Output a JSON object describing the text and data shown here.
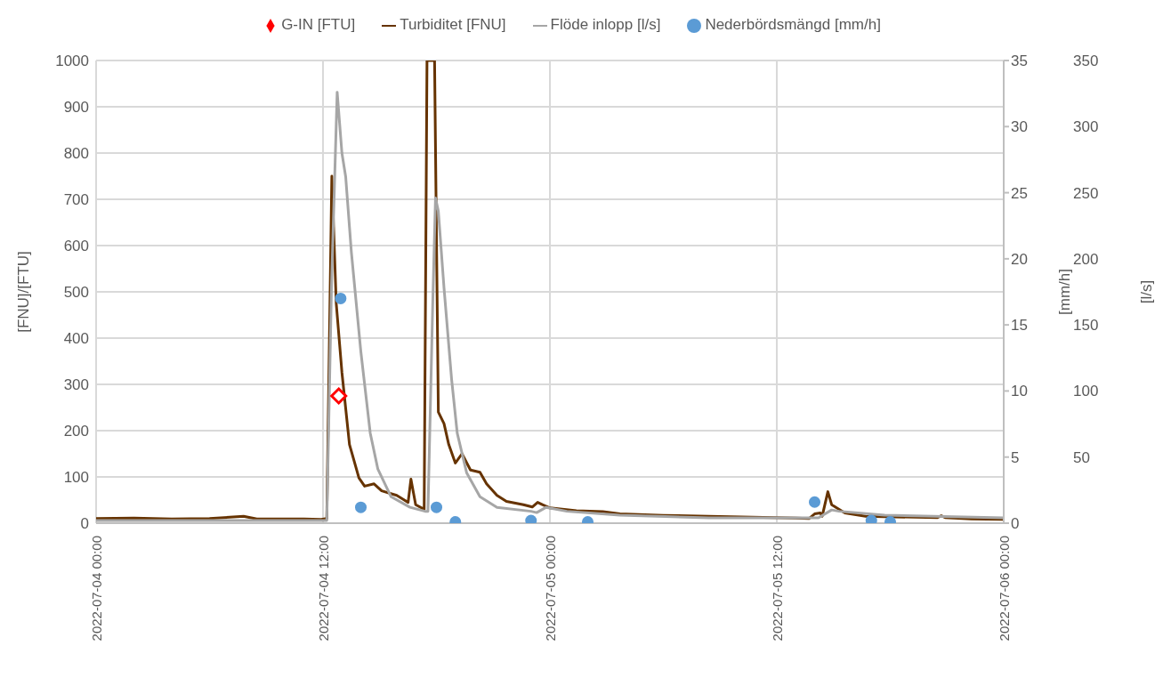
{
  "chart_data": {
    "type": "line",
    "ylabel": "[FNU]/[FTU]",
    "y2label": "[mm/h]",
    "y3label": "[l/s]",
    "xlim": [
      "2022-07-04T00:00",
      "2022-07-06T00:00"
    ],
    "xticks": [
      {
        "value": "2022-07-04T00:00",
        "label": "2022-07-04 00:00"
      },
      {
        "value": "2022-07-04T12:00",
        "label": "2022-07-04 12:00"
      },
      {
        "value": "2022-07-05T00:00",
        "label": "2022-07-05 00:00"
      },
      {
        "value": "2022-07-05T12:00",
        "label": "2022-07-05 12:00"
      },
      {
        "value": "2022-07-06T00:00",
        "label": "2022-07-06 00:00"
      }
    ],
    "ylim": [
      0,
      1000
    ],
    "yticks": [
      0,
      100,
      200,
      300,
      400,
      500,
      600,
      700,
      800,
      900,
      1000
    ],
    "y2lim": [
      0,
      35
    ],
    "y2ticks": [
      0,
      5,
      10,
      15,
      20,
      25,
      30,
      35
    ],
    "y3lim": [
      0,
      350
    ],
    "y3ticks": [
      50,
      100,
      150,
      200,
      250,
      300,
      350
    ],
    "grid": true,
    "legend": "top",
    "series": [
      {
        "name": "G-IN [FTU]",
        "type": "scatter",
        "marker": "diamond",
        "color": "#ff0000",
        "x": [
          "2022-07-04T12:50"
        ],
        "values": [
          275
        ]
      },
      {
        "name": "Turbiditet [FNU]",
        "marker": "none",
        "color": "#663300",
        "x": [
          "2022-07-04T00:00",
          "2022-07-04T02:00",
          "2022-07-04T04:00",
          "2022-07-04T06:00",
          "2022-07-04T07:48",
          "2022-07-04T08:30",
          "2022-07-04T11:00",
          "2022-07-04T11:54",
          "2022-07-04T12:12",
          "2022-07-04T12:28",
          "2022-07-04T12:42",
          "2022-07-04T13:00",
          "2022-07-04T13:24",
          "2022-07-04T13:54",
          "2022-07-04T14:12",
          "2022-07-04T14:42",
          "2022-07-04T15:06",
          "2022-07-04T15:54",
          "2022-07-04T16:18",
          "2022-07-04T16:30",
          "2022-07-04T16:39",
          "2022-07-04T16:54",
          "2022-07-04T17:21",
          "2022-07-04T17:30",
          "2022-07-04T17:54",
          "2022-07-04T18:06",
          "2022-07-04T18:24",
          "2022-07-04T18:39",
          "2022-07-04T19:00",
          "2022-07-04T19:21",
          "2022-07-04T19:48",
          "2022-07-04T20:18",
          "2022-07-04T20:39",
          "2022-07-04T21:12",
          "2022-07-04T21:42",
          "2022-07-04T22:36",
          "2022-07-04T23:04",
          "2022-07-04T23:21",
          "2022-07-04T23:36",
          "2022-07-05T00:00",
          "2022-07-05T01:24",
          "2022-07-05T02:48",
          "2022-07-05T03:42",
          "2022-07-05T06:00",
          "2022-07-05T08:24",
          "2022-07-05T10:42",
          "2022-07-05T13:00",
          "2022-07-05T13:42",
          "2022-07-05T14:00",
          "2022-07-05T14:18",
          "2022-07-05T14:24",
          "2022-07-05T14:42",
          "2022-07-05T14:54",
          "2022-07-05T15:36",
          "2022-07-05T16:42",
          "2022-07-05T17:42",
          "2022-07-05T20:30",
          "2022-07-05T20:42",
          "2022-07-05T20:54",
          "2022-07-05T22:18",
          "2022-07-06T00:00"
        ],
        "values": [
          10,
          11,
          9,
          10,
          15,
          9,
          9,
          8,
          10,
          750,
          475,
          326,
          170,
          98,
          80,
          85,
          70,
          60,
          50,
          45,
          95,
          40,
          30,
          1000,
          1000,
          240,
          215,
          170,
          130,
          150,
          115,
          110,
          85,
          60,
          47,
          40,
          35,
          45,
          40,
          33,
          27,
          25,
          20,
          17,
          15,
          13,
          11,
          10,
          20,
          22,
          15,
          68,
          40,
          22,
          15,
          14,
          12,
          16,
          12,
          9,
          8
        ]
      },
      {
        "name": "Flöde inlopp [l/s]",
        "marker": "none",
        "axis": "y3",
        "color": "#a6a6a6",
        "x": [
          "2022-07-04T00:00",
          "2022-07-04T12:12",
          "2022-07-04T12:27",
          "2022-07-04T12:45",
          "2022-07-04T13:00",
          "2022-07-04T13:12",
          "2022-07-04T13:30",
          "2022-07-04T14:00",
          "2022-07-04T14:30",
          "2022-07-04T14:54",
          "2022-07-04T15:36",
          "2022-07-04T16:36",
          "2022-07-04T17:24",
          "2022-07-04T17:33",
          "2022-07-04T17:48",
          "2022-07-04T17:57",
          "2022-07-04T18:06",
          "2022-07-04T18:24",
          "2022-07-04T18:48",
          "2022-07-04T19:06",
          "2022-07-04T19:36",
          "2022-07-04T20:18",
          "2022-07-04T21:12",
          "2022-07-04T23:00",
          "2022-07-04T23:18",
          "2022-07-04T23:48",
          "2022-07-05T00:54",
          "2022-07-05T03:42",
          "2022-07-05T08:24",
          "2022-07-05T13:00",
          "2022-07-05T14:12",
          "2022-07-05T14:54",
          "2022-07-05T15:18",
          "2022-07-05T17:42",
          "2022-07-06T00:00"
        ],
        "values": [
          2,
          2,
          180,
          326,
          280,
          262,
          205,
          130,
          68,
          41,
          20,
          12,
          9,
          9,
          164,
          246,
          236,
          178,
          109,
          68,
          38,
          20,
          12,
          9,
          8,
          12,
          9,
          6,
          4,
          4,
          4,
          10,
          9,
          6,
          4
        ]
      },
      {
        "name": "Nederbördsmängd [mm/h]",
        "type": "scatter",
        "marker": "circle",
        "axis": "y2",
        "color": "#5b9bd5",
        "x": [
          "2022-07-04T12:56",
          "2022-07-04T14:00",
          "2022-07-04T18:00",
          "2022-07-04T19:00",
          "2022-07-04T23:00",
          "2022-07-05T02:00",
          "2022-07-05T14:00",
          "2022-07-05T17:00",
          "2022-07-05T18:00"
        ],
        "values": [
          17,
          1.2,
          1.2,
          0.1,
          0.2,
          0.1,
          1.6,
          0.2,
          0.1
        ]
      }
    ]
  }
}
